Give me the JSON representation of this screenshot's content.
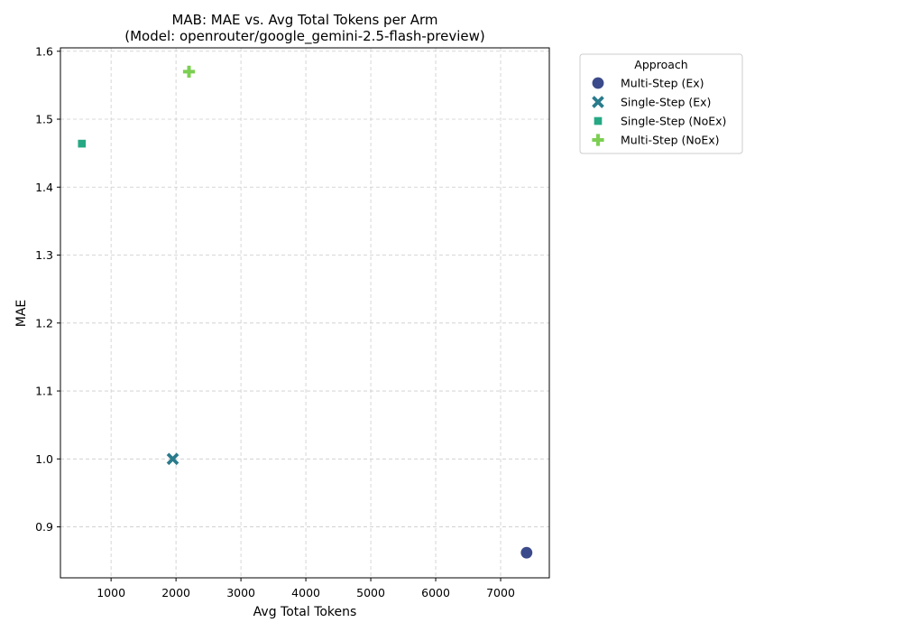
{
  "chart_data": {
    "type": "scatter",
    "title": "MAB: MAE vs. Avg Total Tokens per Arm",
    "subtitle": "(Model: openrouter/google_gemini-2.5-flash-preview)",
    "xlabel": "Avg Total Tokens",
    "ylabel": "MAE",
    "xlim": [
      220,
      7750
    ],
    "ylim": [
      0.825,
      1.605
    ],
    "xticks": [
      1000,
      2000,
      3000,
      4000,
      5000,
      6000,
      7000
    ],
    "yticks": [
      0.9,
      1.0,
      1.1,
      1.2,
      1.3,
      1.4,
      1.5,
      1.6
    ],
    "grid": true,
    "legend": {
      "title": "Approach",
      "placement": "outside-top-right"
    },
    "series": [
      {
        "name": "Multi-Step (Ex)",
        "marker": "circle",
        "color": "#3b4a8a",
        "points": [
          {
            "x": 7400,
            "y": 0.862
          }
        ]
      },
      {
        "name": "Single-Step (Ex)",
        "marker": "x",
        "color": "#2a7b8c",
        "points": [
          {
            "x": 1950,
            "y": 1.0
          }
        ]
      },
      {
        "name": "Single-Step (NoEx)",
        "marker": "square",
        "color": "#26a884",
        "points": [
          {
            "x": 550,
            "y": 1.464
          }
        ]
      },
      {
        "name": "Multi-Step (NoEx)",
        "marker": "plus",
        "color": "#7ccf52",
        "points": [
          {
            "x": 2200,
            "y": 1.57
          }
        ]
      }
    ]
  }
}
